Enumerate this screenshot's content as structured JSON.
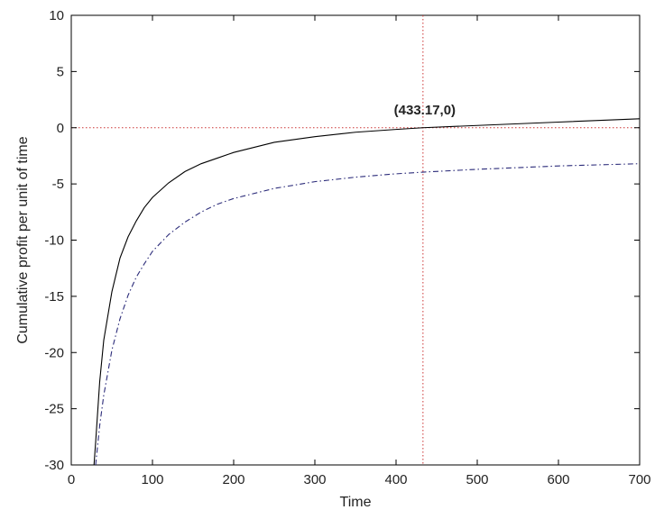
{
  "chart_data": {
    "type": "line",
    "xlabel": "Time",
    "ylabel": "Cumulative profit per unit of time",
    "xlim": [
      0,
      700
    ],
    "ylim": [
      -30,
      10
    ],
    "xticks": [
      0,
      100,
      200,
      300,
      400,
      500,
      600,
      700
    ],
    "yticks": [
      10,
      5,
      0,
      -5,
      -10,
      -15,
      -20,
      -25,
      -30
    ],
    "grid": false,
    "series": [
      {
        "style": "solid",
        "color": "#000000",
        "x": [
          28,
          30,
          35,
          40,
          50,
          60,
          70,
          80,
          90,
          100,
          120,
          140,
          160,
          180,
          200,
          250,
          300,
          350,
          400,
          433.17,
          500,
          600,
          700
        ],
        "y": [
          -30,
          -28,
          -22.6,
          -18.9,
          -14.6,
          -11.6,
          -9.7,
          -8.3,
          -7.1,
          -6.2,
          -4.9,
          -3.9,
          -3.2,
          -2.7,
          -2.2,
          -1.3,
          -0.8,
          -0.4,
          -0.15,
          0,
          0.2,
          0.5,
          0.8
        ]
      },
      {
        "style": "dashdot",
        "color": "#2c2c7a",
        "x": [
          30,
          35,
          40,
          50,
          60,
          70,
          80,
          90,
          100,
          120,
          140,
          160,
          180,
          200,
          250,
          300,
          350,
          400,
          433.17,
          500,
          600,
          700
        ],
        "y": [
          -30,
          -26.5,
          -23.8,
          -19.8,
          -17,
          -14.9,
          -13.3,
          -12.1,
          -11,
          -9.5,
          -8.4,
          -7.5,
          -6.8,
          -6.3,
          -5.4,
          -4.8,
          -4.4,
          -4.1,
          -3.95,
          -3.7,
          -3.4,
          -3.2
        ]
      }
    ],
    "reference_lines": [
      {
        "orientation": "horizontal",
        "value": 0,
        "style": "dotted",
        "color": "#cc3333"
      },
      {
        "orientation": "vertical",
        "value": 433.17,
        "style": "dotted",
        "color": "#cc3333"
      }
    ],
    "annotations": [
      {
        "text": "(433.17,0)",
        "x": 433.17,
        "y": 0
      }
    ]
  }
}
